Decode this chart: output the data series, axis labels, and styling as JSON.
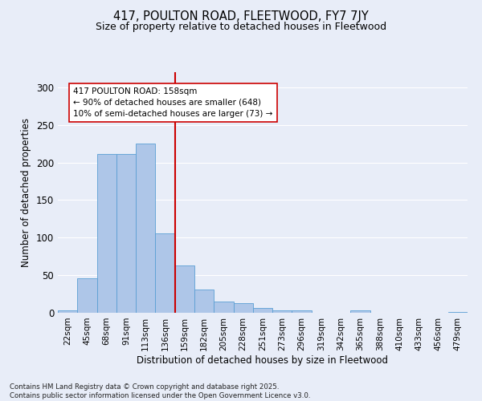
{
  "title1": "417, POULTON ROAD, FLEETWOOD, FY7 7JY",
  "title2": "Size of property relative to detached houses in Fleetwood",
  "xlabel": "Distribution of detached houses by size in Fleetwood",
  "ylabel": "Number of detached properties",
  "bar_labels": [
    "22sqm",
    "45sqm",
    "68sqm",
    "91sqm",
    "113sqm",
    "136sqm",
    "159sqm",
    "182sqm",
    "205sqm",
    "228sqm",
    "251sqm",
    "273sqm",
    "296sqm",
    "319sqm",
    "342sqm",
    "365sqm",
    "388sqm",
    "410sqm",
    "433sqm",
    "456sqm",
    "479sqm"
  ],
  "bar_values": [
    3,
    46,
    211,
    211,
    225,
    106,
    63,
    31,
    15,
    13,
    6,
    3,
    3,
    0,
    0,
    3,
    0,
    0,
    0,
    0,
    1
  ],
  "bar_color": "#aec6e8",
  "bar_edge_color": "#5a9fd4",
  "vline_x": 5.5,
  "annotation_text": "417 POULTON ROAD: 158sqm\n← 90% of detached houses are smaller (648)\n10% of semi-detached houses are larger (73) →",
  "annotation_box_color": "#ffffff",
  "annotation_box_edge_color": "#cc0000",
  "vline_color": "#cc0000",
  "background_color": "#e8edf8",
  "grid_color": "#ffffff",
  "footer_text": "Contains HM Land Registry data © Crown copyright and database right 2025.\nContains public sector information licensed under the Open Government Licence v3.0.",
  "ylim": [
    0,
    320
  ],
  "yticks": [
    0,
    50,
    100,
    150,
    200,
    250,
    300
  ]
}
